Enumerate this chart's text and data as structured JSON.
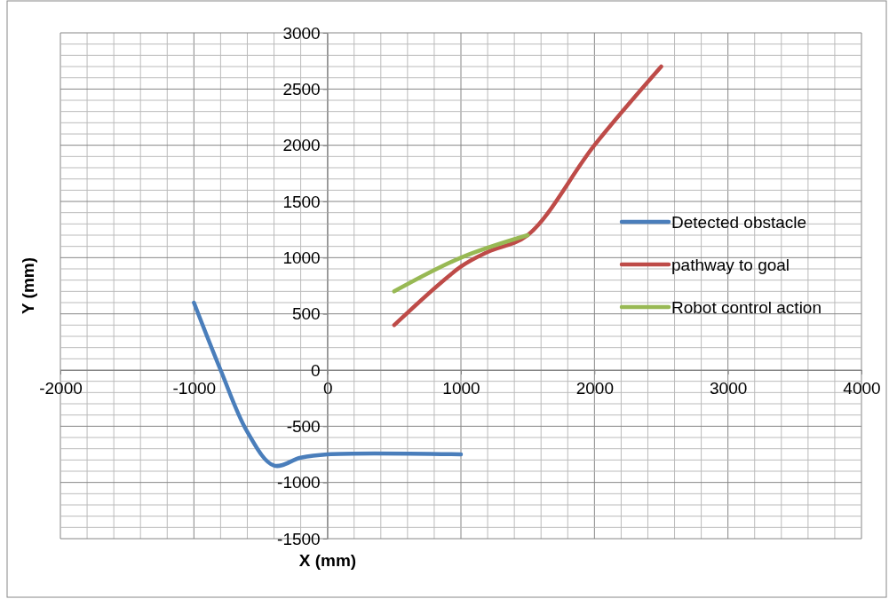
{
  "chart_data": {
    "type": "line",
    "xlabel": "X (mm)",
    "ylabel": "Y (mm)",
    "xlim": [
      -2000,
      4000
    ],
    "xticks": [
      -2000,
      -1000,
      0,
      1000,
      2000,
      3000,
      4000
    ],
    "ylim": [
      -1500,
      3000
    ],
    "yticks": [
      -1500,
      -1000,
      -500,
      0,
      500,
      1000,
      1500,
      2000,
      2500,
      3000
    ],
    "grid": true,
    "legend": "right",
    "marker": "none",
    "line_style": "solid",
    "series": [
      {
        "name": "Detected obstacle",
        "color": "#4a7ebb",
        "x": [
          -1000,
          -800,
          -600,
          -400,
          -200,
          0,
          1000
        ],
        "values": [
          600,
          0,
          -550,
          -850,
          -780,
          -750,
          -750
        ]
      },
      {
        "name": "pathway to goal",
        "color": "#be4b48",
        "x": [
          500,
          1000,
          1200,
          1500,
          2000,
          2500
        ],
        "values": [
          400,
          920,
          1050,
          1200,
          2000,
          2700
        ]
      },
      {
        "name": "Robot control action",
        "color": "#98b954",
        "x": [
          500,
          1000,
          1500
        ],
        "values": [
          700,
          1000,
          1200
        ]
      }
    ]
  }
}
